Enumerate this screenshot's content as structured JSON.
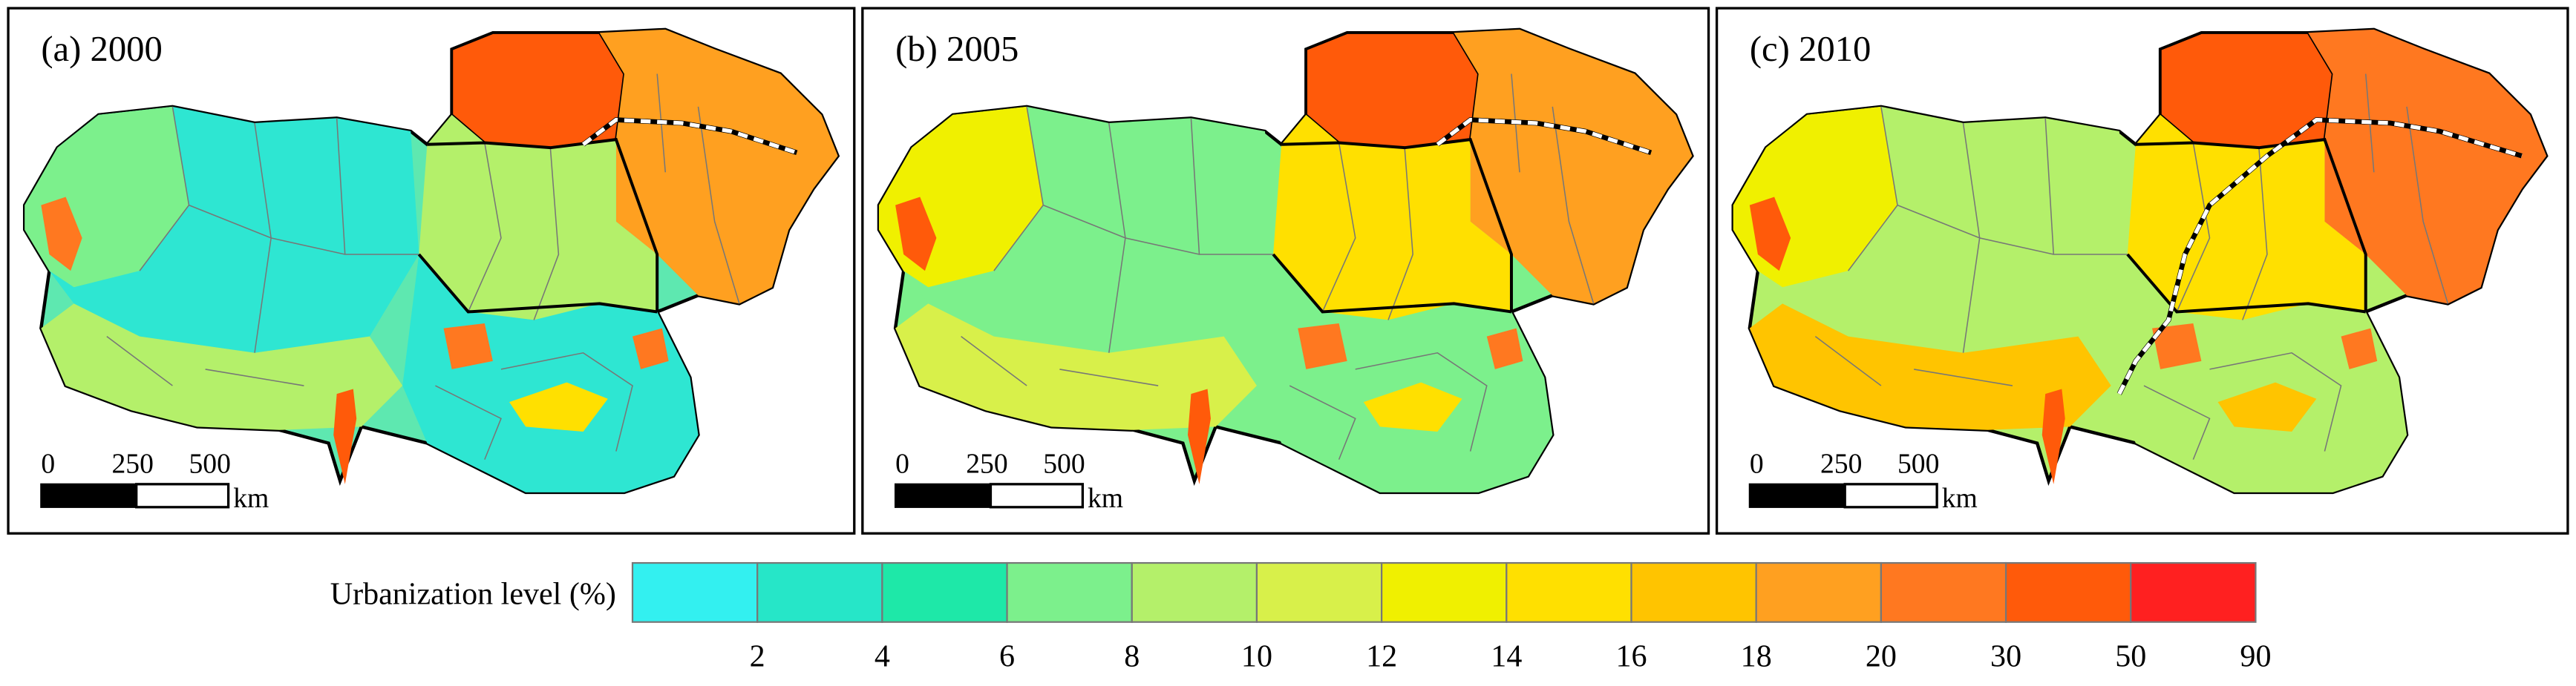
{
  "panels": [
    {
      "label": "(a) 2000"
    },
    {
      "label": "(b) 2005"
    },
    {
      "label": "(c) 2010"
    }
  ],
  "scale_bar": {
    "ticks": [
      "0",
      "250",
      "500"
    ],
    "unit": "km"
  },
  "legend": {
    "title": "Urbanization level (%)",
    "colors": [
      "#33f0f0",
      "#26e6c8",
      "#1ee8a8",
      "#7cf08c",
      "#b4f06a",
      "#d8f04a",
      "#f0f000",
      "#ffe000",
      "#ffc400",
      "#ffa020",
      "#ff7820",
      "#ff5a0a",
      "#ff2020"
    ],
    "ticks": [
      2,
      4,
      6,
      8,
      10,
      12,
      14,
      16,
      18,
      20,
      30,
      50,
      90
    ]
  }
}
